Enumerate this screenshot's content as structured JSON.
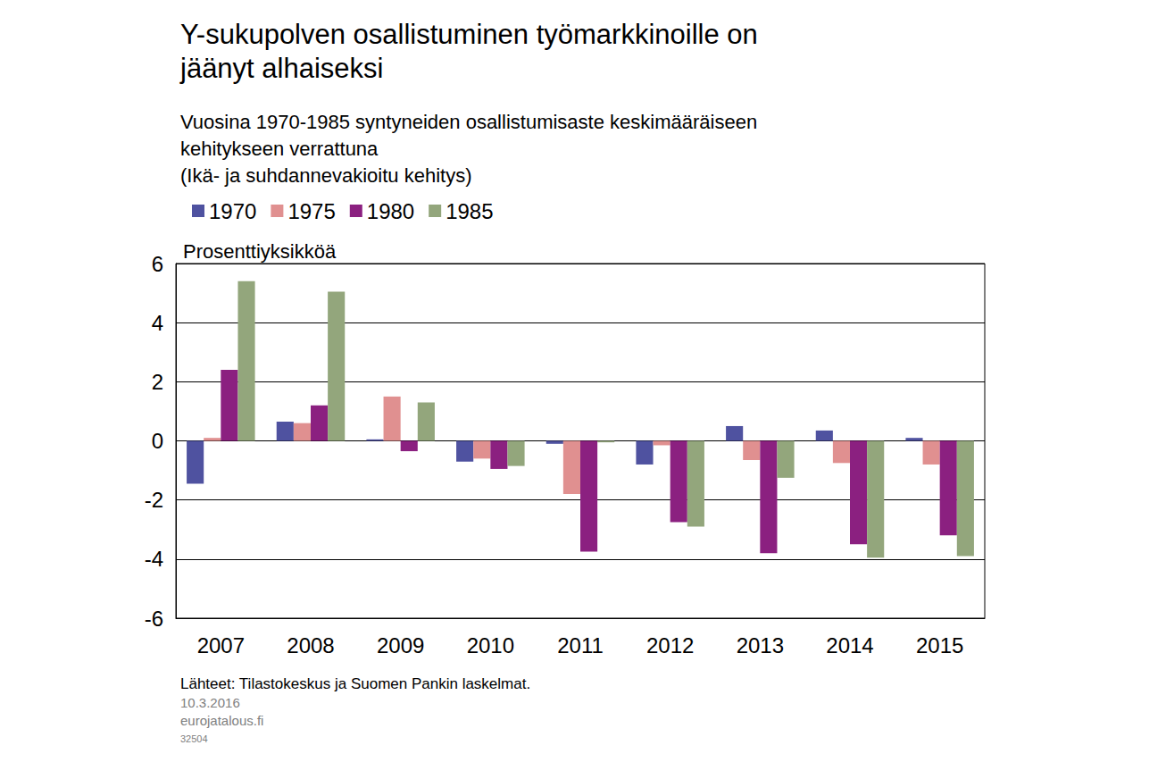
{
  "chart_data": {
    "type": "bar",
    "title": [
      "Y-sukupolven osallistuminen työmarkkinoille on",
      "jäänyt alhaiseksi"
    ],
    "subtitle": [
      "Vuosina 1970-1985 syntyneiden osallistumisaste keskimääräiseen",
      "kehitykseen verrattuna",
      "(Ikä- ja suhdannevakioitu kehitys)"
    ],
    "ylabel": "Prosenttiyksikköä",
    "footer": [
      "Lähteet: Tilastokeskus ja Suomen Pankin laskelmat.",
      "10.3.2016",
      "eurojatalous.fi",
      "32504"
    ],
    "categories": [
      "2007",
      "2008",
      "2009",
      "2010",
      "2011",
      "2012",
      "2013",
      "2014",
      "2015"
    ],
    "series": [
      {
        "name": "1970",
        "color": "#4f52a0",
        "values": [
          -1.45,
          0.65,
          0.05,
          -0.7,
          -0.1,
          -0.8,
          0.5,
          0.35,
          0.1
        ]
      },
      {
        "name": "1975",
        "color": "#e09090",
        "values": [
          0.1,
          0.6,
          1.5,
          -0.6,
          -1.8,
          -0.15,
          -0.65,
          -0.75,
          -0.8
        ]
      },
      {
        "name": "1980",
        "color": "#8b2080",
        "values": [
          2.4,
          1.2,
          -0.35,
          -0.95,
          -3.75,
          -2.75,
          -3.8,
          -3.5,
          -3.2
        ]
      },
      {
        "name": "1985",
        "color": "#93a67c",
        "values": [
          5.4,
          5.05,
          1.3,
          -0.85,
          -0.05,
          -2.9,
          -1.25,
          -3.95,
          -3.9
        ]
      }
    ],
    "ylim": [
      -6,
      6
    ],
    "yticks": [
      -6,
      -4,
      -2,
      0,
      2,
      4,
      6
    ],
    "grid": true,
    "legend": "top"
  }
}
